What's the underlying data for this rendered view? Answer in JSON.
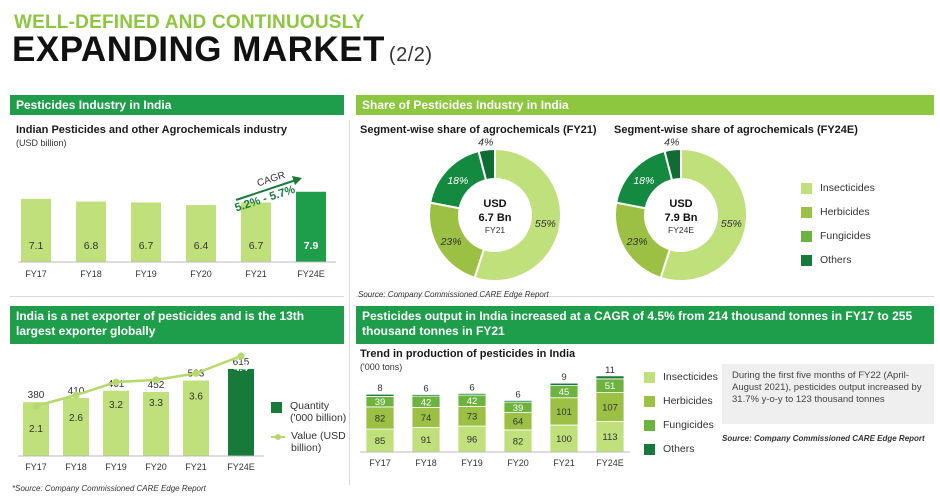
{
  "header": {
    "kicker": "WELL-DEFINED AND CONTINUOUSLY",
    "title": "EXPANDING MARKET",
    "part": "(2/2)"
  },
  "colors": {
    "dark_green": "#1e9d4b",
    "deep_green": "#177a3b",
    "lime": "#8dc63f",
    "light_lime": "#b6d96b",
    "light_bar": "#bfe07a",
    "olive": "#9bc043",
    "mid_green": "#6db33f"
  },
  "panel_pesticides": {
    "header": "Pesticides Industry in India",
    "title": "Indian Pesticides and other Agrochemicals industry",
    "unit": "(USD billion)",
    "cagr_label": "CAGR",
    "cagr_value": "5.2% - 5.7%"
  },
  "panel_share": {
    "header": "Share of Pesticides Industry in India",
    "left_title": "Segment-wise share of agrochemicals (FY21)",
    "right_title": "Segment-wise share of agrochemicals (FY24E)",
    "left_center": {
      "line1": "USD",
      "line2": "6.7 Bn",
      "line3": "FY21"
    },
    "right_center": {
      "line1": "USD",
      "line2": "7.9 Bn",
      "line3": "FY24E"
    },
    "legend": [
      "Insecticides",
      "Herbicides",
      "Fungicides",
      "Others"
    ],
    "source": "Source: Company Commissioned CARE Edge Report"
  },
  "panel_exporter": {
    "header": "India is a net exporter of pesticides and is the 13th largest exporter globally",
    "legend_quantity": "Quantity ('000 billion)",
    "legend_value": "Value (USD billion)"
  },
  "panel_output": {
    "header": "Pesticides output in India increased at a CAGR of 4.5% from 214 thousand tonnes in FY17 to 255 thousand tonnes in FY21",
    "title": "Trend in production of pesticides in India",
    "unit": "('000 tons)",
    "legend": [
      "Insecticides",
      "Herbicides",
      "Fungicides",
      "Others"
    ],
    "note": "During the first five months of FY22 (April-August 2021), pesticides output increased by 31.7% y-o-y to 123 thousand tonnes",
    "source": "Source: Company Commissioned CARE Edge Report"
  },
  "footer_source": "*Source: Company Commissioned CARE Edge Report",
  "chart_data": [
    {
      "type": "bar",
      "title": "Indian Pesticides and other Agrochemicals industry",
      "ylabel": "(USD billion)",
      "categories": [
        "FY17",
        "FY18",
        "FY19",
        "FY20",
        "FY21",
        "FY24E"
      ],
      "values": [
        7.1,
        6.8,
        6.7,
        6.4,
        6.7,
        7.9
      ],
      "labels": [
        "7.1",
        "6.8",
        "6.7",
        "6.4",
        "6.7",
        "7.9"
      ],
      "annotation": "CAGR 5.2% - 5.7%"
    },
    {
      "type": "pie",
      "title": "Segment-wise share of agrochemicals (FY21)",
      "categories": [
        "Insecticides",
        "Herbicides",
        "Fungicides",
        "Others"
      ],
      "values": [
        55,
        23,
        18,
        4
      ],
      "labels": [
        "55%",
        "23%",
        "18%",
        "4%"
      ]
    },
    {
      "type": "pie",
      "title": "Segment-wise share of agrochemicals (FY24E)",
      "categories": [
        "Insecticides",
        "Herbicides",
        "Fungicides",
        "Others"
      ],
      "values": [
        55,
        23,
        18,
        4
      ],
      "labels": [
        "55%",
        "23%",
        "18%",
        "4%"
      ]
    },
    {
      "type": "bar",
      "categories": [
        "FY17",
        "FY18",
        "FY19",
        "FY20",
        "FY21",
        "FY24E"
      ],
      "series": [
        {
          "name": "Quantity ('000 billion)",
          "values": [
            380,
            410,
            461,
            452,
            533,
            615
          ],
          "labels": [
            "380",
            "410",
            "461",
            "452",
            "533",
            "615"
          ]
        },
        {
          "name": "Value (USD billion)",
          "values": [
            2.1,
            2.6,
            3.2,
            3.3,
            3.6,
            4.4
          ],
          "labels": [
            "2.1",
            "2.6",
            "3.2",
            "3.3",
            "3.6",
            "4.4"
          ]
        }
      ]
    },
    {
      "type": "bar",
      "title": "Trend in production of pesticides in India",
      "ylabel": "('000 tons)",
      "categories": [
        "FY17",
        "FY18",
        "FY19",
        "FY20",
        "FY21",
        "FY24E"
      ],
      "series": [
        {
          "name": "Insecticides",
          "values": [
            85,
            91,
            96,
            82,
            100,
            113
          ]
        },
        {
          "name": "Herbicides",
          "values": [
            82,
            74,
            73,
            64,
            101,
            107
          ]
        },
        {
          "name": "Fungicides",
          "values": [
            39,
            42,
            42,
            39,
            45,
            51
          ]
        },
        {
          "name": "Others",
          "values": [
            8,
            6,
            6,
            6,
            9,
            11
          ]
        }
      ]
    }
  ]
}
